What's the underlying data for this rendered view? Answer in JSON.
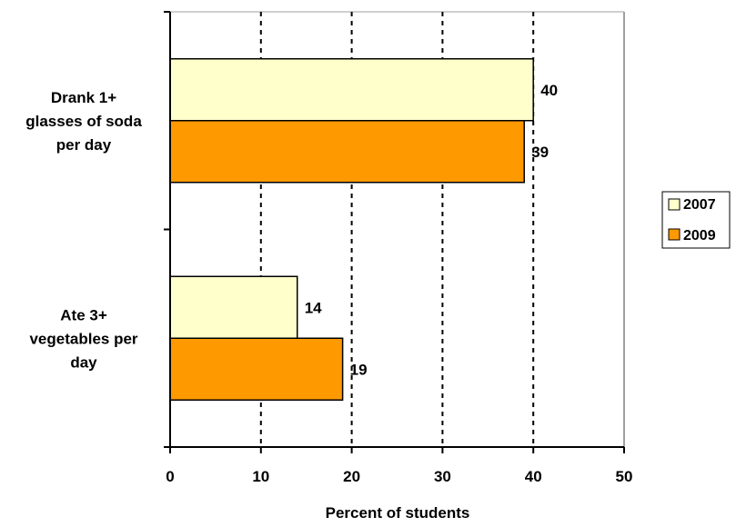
{
  "chart_data": {
    "type": "bar",
    "orientation": "horizontal",
    "categories": [
      "Drank 1+ glasses of soda per day",
      "Ate 3+ vegetables per day"
    ],
    "category_label_lines": [
      [
        "Drank 1+",
        "glasses of soda",
        "per day"
      ],
      [
        "Ate 3+",
        "vegetables per",
        "day"
      ]
    ],
    "series": [
      {
        "name": "2007",
        "values": [
          40,
          14
        ],
        "color": "#FFFFCC"
      },
      {
        "name": "2009",
        "values": [
          39,
          19
        ],
        "color": "#FF9900"
      }
    ],
    "xlabel": "Percent of students",
    "ylabel": "",
    "title": "",
    "xlim": [
      0,
      50
    ],
    "xticks": [
      0,
      10,
      20,
      30,
      40,
      50
    ],
    "grid": "vertical dashed",
    "legend_position": "right",
    "data_labels": true
  }
}
